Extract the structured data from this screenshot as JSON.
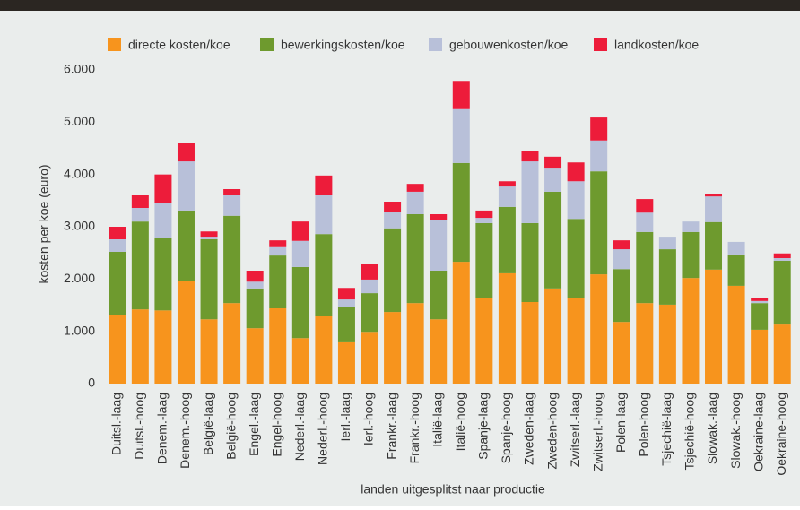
{
  "chart_data": {
    "type": "stacked_bar",
    "categories": [
      "Duitsl.-laag",
      "Duitsl.-hoog",
      "Denem.-laag",
      "Denem.-hoog",
      "België-laag",
      "België-hoog",
      "Engel.-laag",
      "Engel-hoog",
      "Nederl.-laag",
      "Nederl.-hoog",
      "Ierl.-laag",
      "Ierl.-hoog",
      "Frankr.-laag",
      "Frankr.-hoog",
      "Italië-laag",
      "Italië-hoog",
      "Spanje-laag",
      "Spanje-hoog",
      "Zweden-laag",
      "Zweden-hoog",
      "Zwitserl.-laag",
      "Zwitserl.-hoog",
      "Polen-laag",
      "Polen-hoog",
      "Tsjechië-laag",
      "Tsjechië-hoog",
      "Slowak.-laag",
      "Slowak.-hoog",
      "Oekraine-laag",
      "Oekraine-hoog"
    ],
    "series": [
      {
        "name": "directe kosten/koe",
        "color": "#f7941d",
        "values": [
          1320,
          1420,
          1400,
          1970,
          1230,
          1540,
          1060,
          1440,
          870,
          1290,
          790,
          990,
          1370,
          1540,
          1230,
          2330,
          1630,
          2110,
          1560,
          1820,
          1630,
          2090,
          1180,
          1540,
          1510,
          2020,
          2180,
          1870,
          1030,
          1130
        ]
      },
      {
        "name": "bewerkingskosten/koe",
        "color": "#6e9a2e",
        "values": [
          1200,
          1680,
          1380,
          1340,
          1530,
          1670,
          760,
          1010,
          1360,
          1570,
          670,
          740,
          1600,
          1700,
          930,
          1890,
          1440,
          1270,
          1510,
          1850,
          1520,
          1970,
          1010,
          1360,
          1060,
          880,
          910,
          600,
          510,
          1220
        ]
      },
      {
        "name": "gebouwenkosten/koe",
        "color": "#b8c0d9",
        "values": [
          240,
          260,
          670,
          940,
          50,
          390,
          130,
          160,
          500,
          740,
          150,
          260,
          320,
          430,
          960,
          1030,
          100,
          390,
          1180,
          460,
          720,
          590,
          380,
          370,
          240,
          200,
          490,
          240,
          40,
          50
        ]
      },
      {
        "name": "landkosten/koe",
        "color": "#ed1c3a",
        "values": [
          240,
          240,
          550,
          360,
          100,
          120,
          210,
          130,
          370,
          380,
          220,
          290,
          190,
          150,
          120,
          540,
          140,
          100,
          190,
          210,
          360,
          440,
          170,
          260,
          0,
          0,
          40,
          0,
          50,
          90
        ]
      }
    ],
    "ylabel": "kosten per koe (euro)",
    "xlabel": "landen uitgesplitst naar productie",
    "ylim": [
      0,
      6000
    ],
    "yticks": [
      0,
      {
        "value": 1000,
        "label": "1.000"
      },
      {
        "value": 2000,
        "label": "2.000"
      },
      {
        "value": 3000,
        "label": "3.000"
      },
      {
        "value": 4000,
        "label": "4.000"
      },
      {
        "value": 5000,
        "label": "5.000"
      },
      {
        "value": 6000,
        "label": "6.000"
      }
    ],
    "grid": false
  }
}
